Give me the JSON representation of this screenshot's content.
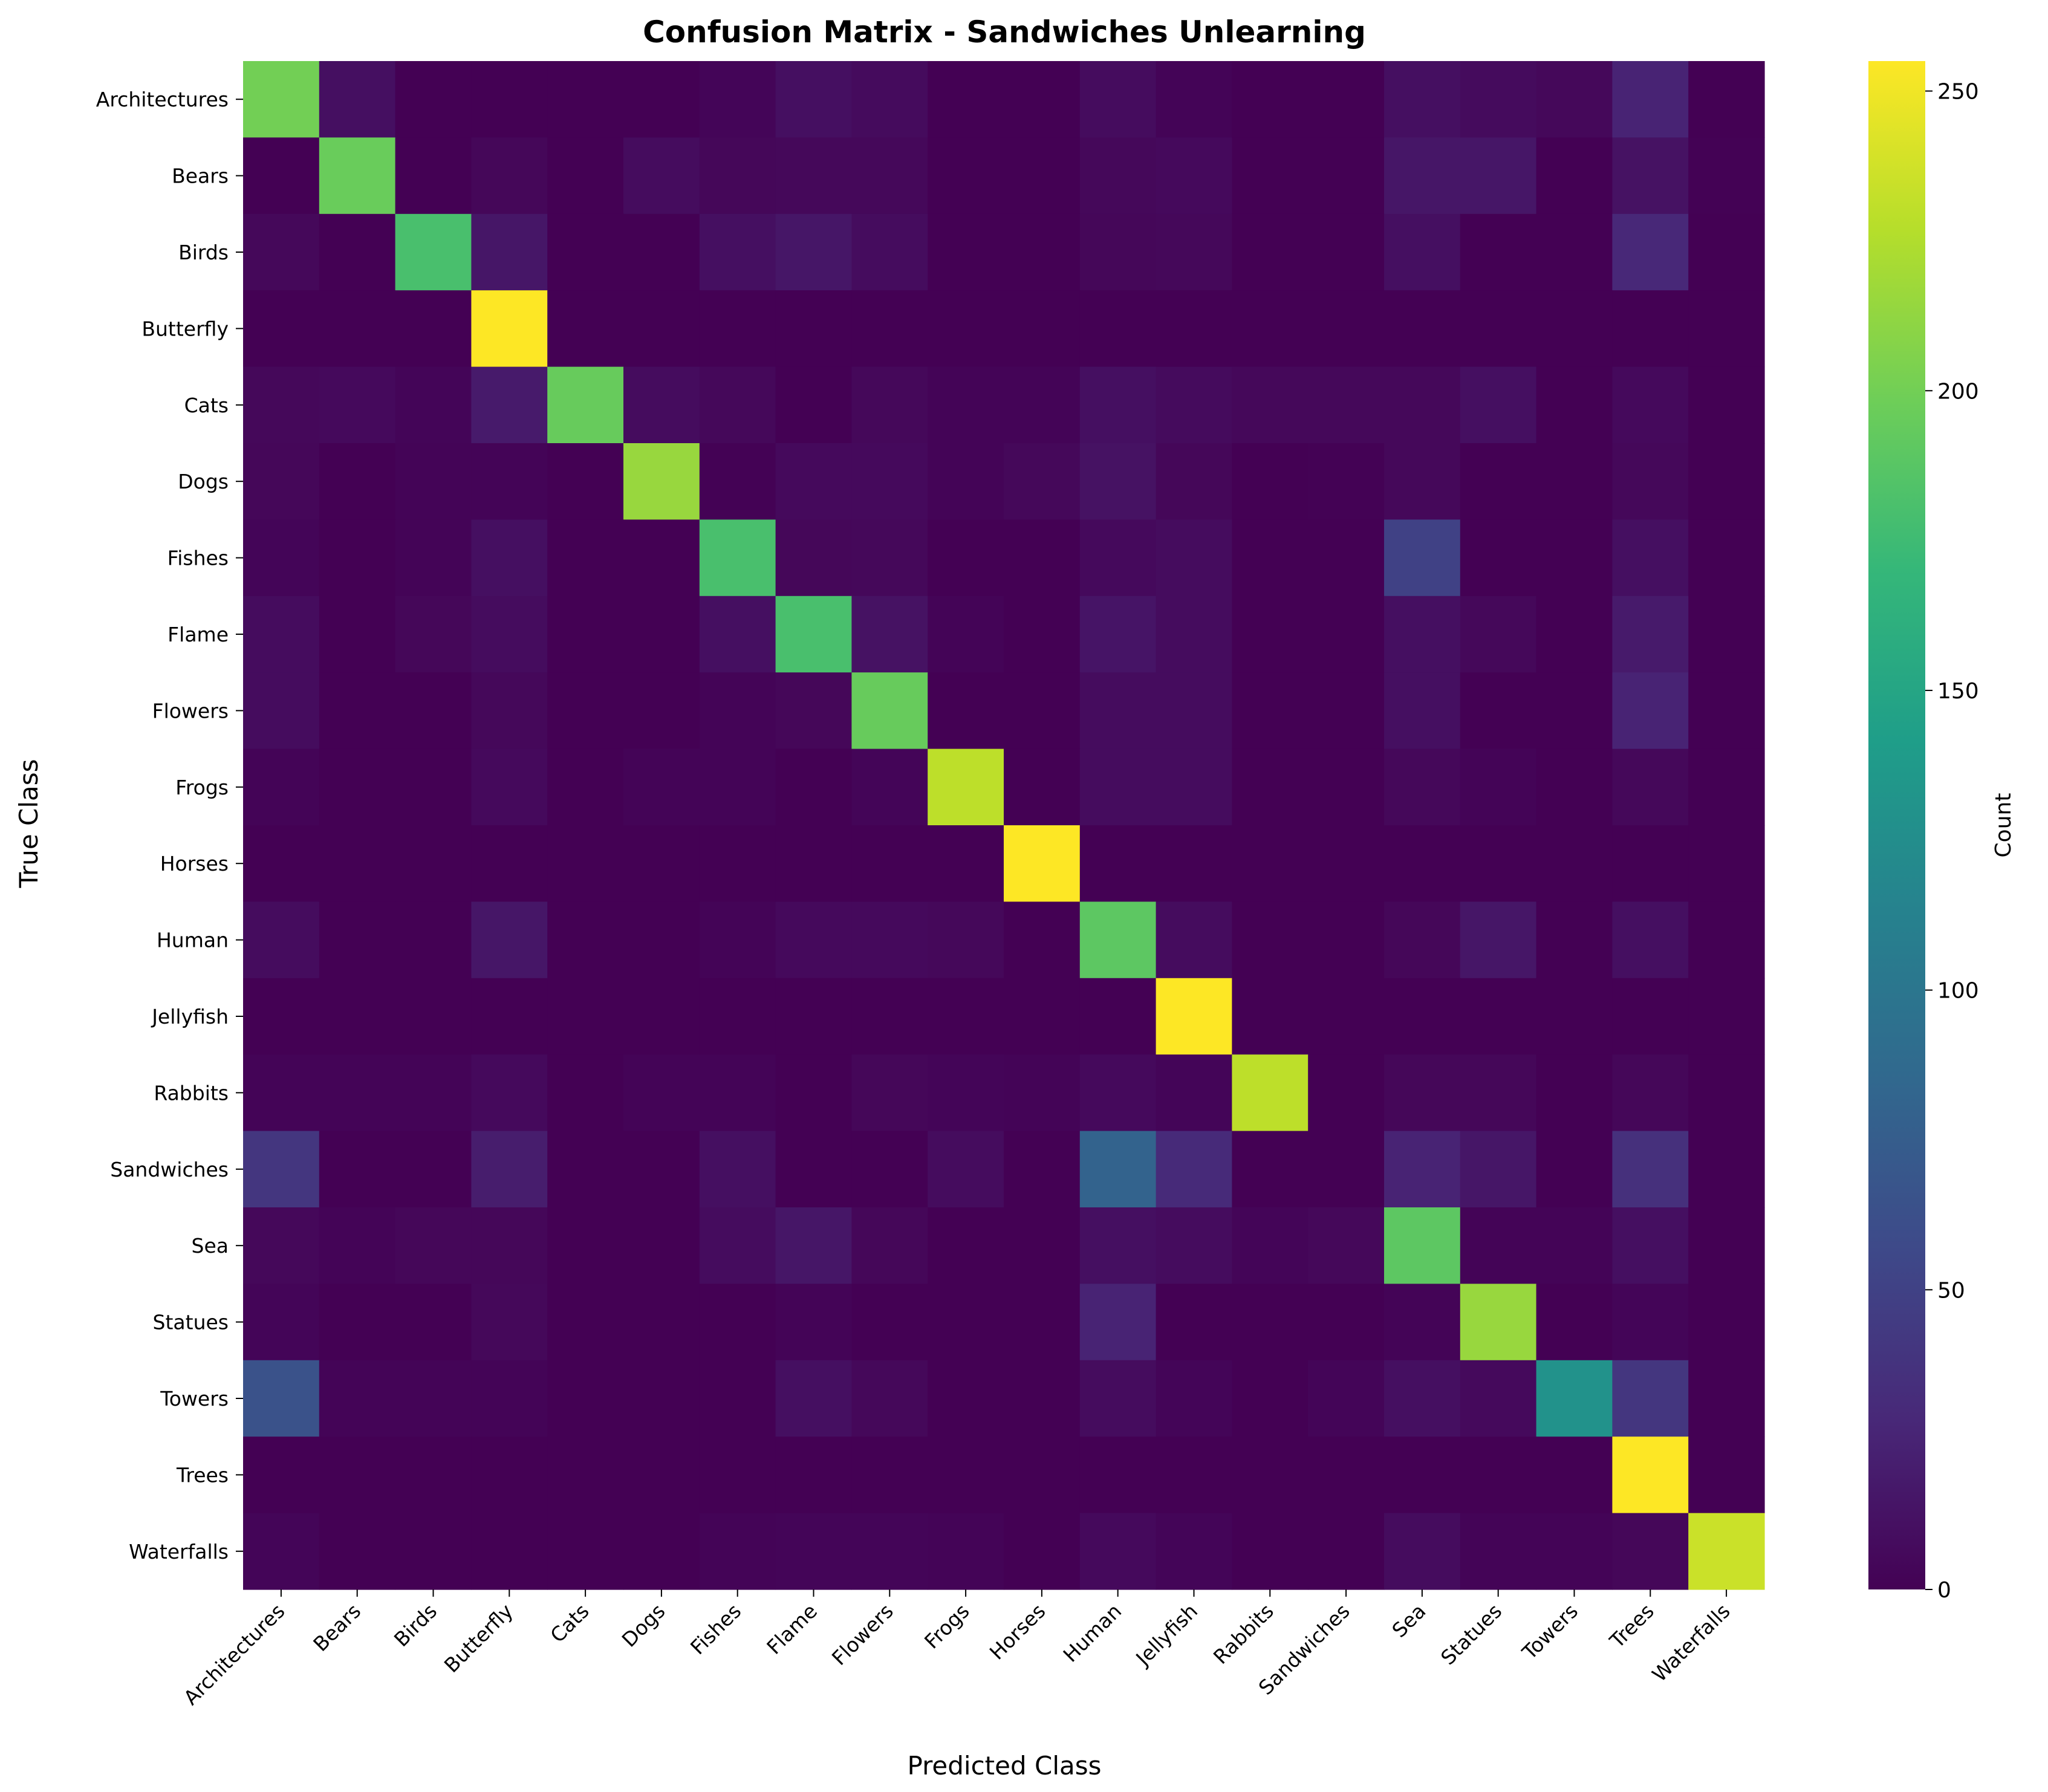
{
  "chart_data": {
    "type": "heatmap",
    "title": "Confusion Matrix - Sandwiches Unlearning",
    "xlabel": "Predicted Class",
    "ylabel": "True Class",
    "colorbar_label": "Count",
    "colormap": "viridis",
    "vmin": 0,
    "vmax": 255,
    "colorbar_ticks": [
      0,
      50,
      100,
      150,
      200,
      250
    ],
    "x_categories": [
      "Architectures",
      "Bears",
      "Birds",
      "Butterfly",
      "Cats",
      "Dogs",
      "Fishes",
      "Flame",
      "Flowers",
      "Frogs",
      "Horses",
      "Human",
      "Jellyfish",
      "Rabbits",
      "Sandwiches",
      "Sea",
      "Statues",
      "Towers",
      "Trees",
      "Waterfalls"
    ],
    "y_categories": [
      "Architectures",
      "Bears",
      "Birds",
      "Butterfly",
      "Cats",
      "Dogs",
      "Fishes",
      "Flame",
      "Flowers",
      "Frogs",
      "Horses",
      "Human",
      "Jellyfish",
      "Rabbits",
      "Sandwiches",
      "Sea",
      "Statues",
      "Towers",
      "Trees",
      "Waterfalls"
    ],
    "matrix": [
      [
        200,
        10,
        0,
        0,
        0,
        0,
        3,
        10,
        7,
        0,
        0,
        8,
        2,
        0,
        0,
        10,
        7,
        5,
        25,
        0
      ],
      [
        0,
        196,
        0,
        4,
        0,
        8,
        4,
        5,
        5,
        0,
        0,
        5,
        6,
        0,
        0,
        15,
        15,
        0,
        12,
        1
      ],
      [
        5,
        0,
        180,
        15,
        0,
        0,
        10,
        15,
        8,
        0,
        0,
        4,
        5,
        0,
        0,
        10,
        0,
        0,
        28,
        0
      ],
      [
        0,
        0,
        0,
        255,
        0,
        0,
        0,
        0,
        0,
        0,
        0,
        0,
        0,
        0,
        0,
        0,
        0,
        0,
        0,
        0
      ],
      [
        5,
        6,
        3,
        18,
        195,
        8,
        5,
        0,
        5,
        2,
        2,
        10,
        7,
        5,
        5,
        5,
        10,
        0,
        6,
        0
      ],
      [
        4,
        0,
        2,
        2,
        0,
        215,
        1,
        6,
        6,
        2,
        5,
        12,
        4,
        0,
        1,
        5,
        0,
        0,
        5,
        0
      ],
      [
        3,
        0,
        2,
        10,
        0,
        0,
        180,
        4,
        5,
        0,
        0,
        6,
        8,
        0,
        0,
        50,
        0,
        0,
        10,
        0
      ],
      [
        8,
        0,
        4,
        8,
        0,
        0,
        10,
        180,
        12,
        2,
        0,
        14,
        8,
        0,
        0,
        10,
        5,
        0,
        18,
        0
      ],
      [
        8,
        0,
        0,
        5,
        0,
        0,
        2,
        4,
        195,
        0,
        0,
        8,
        8,
        0,
        0,
        10,
        0,
        0,
        25,
        0
      ],
      [
        2,
        0,
        0,
        6,
        0,
        2,
        2,
        0,
        3,
        230,
        0,
        8,
        8,
        0,
        0,
        5,
        2,
        0,
        5,
        0
      ],
      [
        0,
        0,
        0,
        0,
        0,
        0,
        0,
        0,
        0,
        0,
        255,
        0,
        0,
        0,
        0,
        0,
        0,
        0,
        0,
        0
      ],
      [
        8,
        0,
        0,
        15,
        0,
        0,
        2,
        6,
        6,
        5,
        0,
        190,
        8,
        0,
        0,
        4,
        15,
        0,
        10,
        0
      ],
      [
        0,
        0,
        0,
        0,
        0,
        0,
        0,
        0,
        0,
        0,
        0,
        0,
        255,
        0,
        0,
        0,
        0,
        0,
        0,
        0
      ],
      [
        2,
        2,
        2,
        6,
        0,
        2,
        2,
        0,
        4,
        3,
        2,
        6,
        3,
        230,
        0,
        4,
        4,
        0,
        4,
        0
      ],
      [
        40,
        0,
        0,
        20,
        0,
        0,
        10,
        0,
        0,
        8,
        0,
        80,
        30,
        0,
        0,
        25,
        15,
        0,
        35,
        0
      ],
      [
        5,
        2,
        4,
        4,
        0,
        0,
        8,
        15,
        4,
        0,
        0,
        10,
        8,
        3,
        5,
        190,
        2,
        2,
        10,
        0
      ],
      [
        3,
        0,
        0,
        5,
        0,
        0,
        0,
        2,
        0,
        0,
        0,
        25,
        0,
        0,
        0,
        2,
        215,
        0,
        3,
        0
      ],
      [
        65,
        2,
        2,
        2,
        0,
        0,
        0,
        10,
        5,
        0,
        0,
        8,
        3,
        0,
        3,
        10,
        6,
        130,
        40,
        0
      ],
      [
        0,
        0,
        0,
        0,
        0,
        0,
        0,
        0,
        0,
        0,
        0,
        0,
        0,
        0,
        0,
        0,
        0,
        0,
        255,
        0
      ],
      [
        3,
        0,
        0,
        0,
        0,
        0,
        2,
        3,
        3,
        2,
        0,
        6,
        3,
        0,
        0,
        8,
        2,
        2,
        4,
        235
      ]
    ]
  }
}
